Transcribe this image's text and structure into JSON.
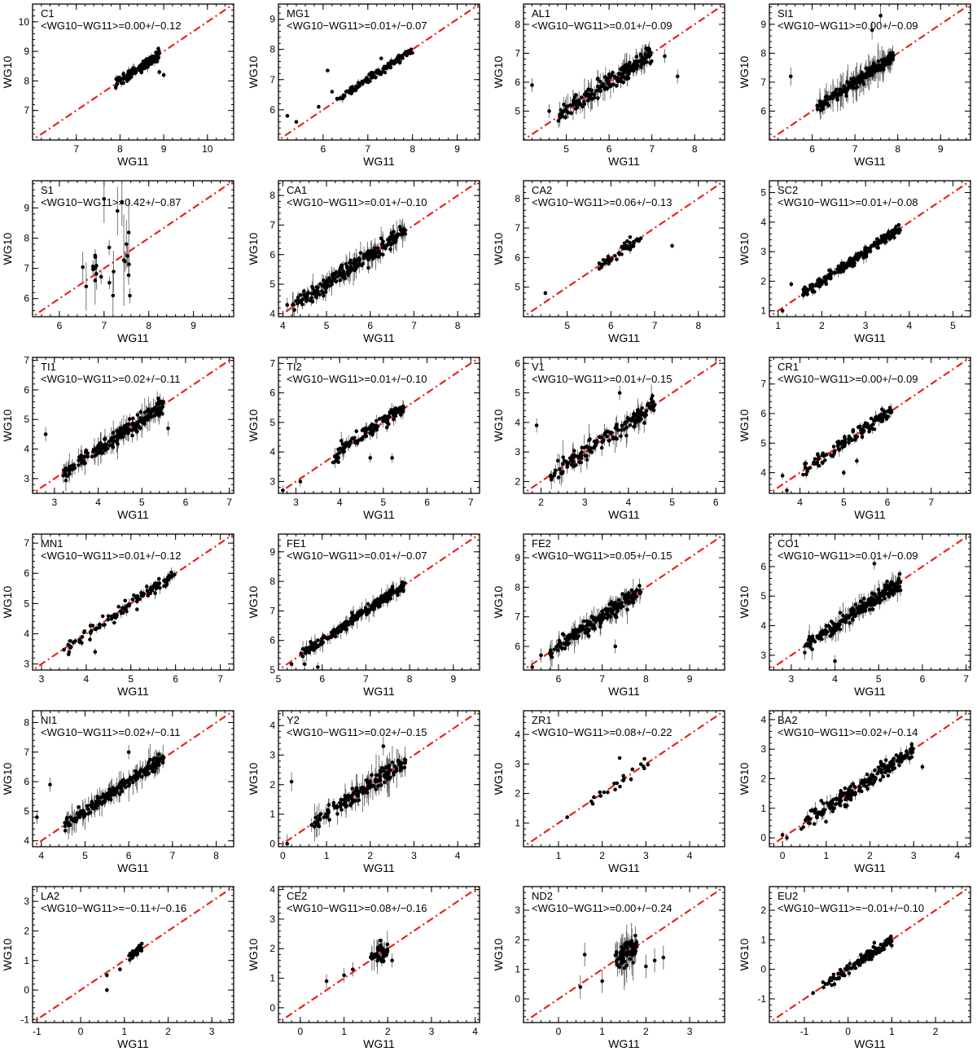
{
  "figure": {
    "xlabel": "WG11",
    "ylabel": "WG10"
  },
  "colors": {
    "identity_line": "#e8231a",
    "points": "#000000",
    "errorbars": "#555555",
    "frame": "#000000"
  },
  "chart_data": [
    {
      "type": "scatter",
      "element": "C1",
      "stat": "<WG10−WG11>=0.00+/−0.12",
      "xlabel": "WG11",
      "ylabel": "WG10",
      "xlim": [
        6.0,
        10.6
      ],
      "ylim": [
        6.0,
        10.6
      ],
      "xticks": [
        7,
        8,
        9,
        10
      ],
      "yticks": [
        7,
        8,
        9,
        10
      ],
      "cluster": {
        "n": 140,
        "xmin": 7.9,
        "xmax": 8.9,
        "scatter": 0.12,
        "yerr": 0.12
      },
      "extra_points": [
        [
          8.0,
          8.1
        ],
        [
          8.9,
          8.3
        ],
        [
          9.0,
          8.2
        ]
      ]
    },
    {
      "type": "scatter",
      "element": "MG1",
      "stat": "<WG10−WG11>=0.01+/−0.07",
      "xlabel": "WG11",
      "ylabel": "WG10",
      "xlim": [
        5.0,
        9.5
      ],
      "ylim": [
        5.0,
        9.5
      ],
      "xticks": [
        6,
        7,
        8,
        9
      ],
      "yticks": [
        6,
        7,
        8,
        9
      ],
      "cluster": {
        "n": 120,
        "xmin": 6.3,
        "xmax": 8.0,
        "scatter": 0.09,
        "yerr": 0.08
      },
      "extra_points": [
        [
          5.2,
          5.8
        ],
        [
          5.4,
          5.6
        ],
        [
          5.9,
          6.1
        ],
        [
          6.1,
          7.3
        ],
        [
          6.2,
          6.6
        ],
        [
          7.3,
          7.7
        ]
      ]
    },
    {
      "type": "scatter",
      "element": "AL1",
      "stat": "<WG10−WG11>=0.01+/−0.09",
      "xlabel": "WG11",
      "ylabel": "WG10",
      "xlim": [
        4.0,
        8.7
      ],
      "ylim": [
        4.0,
        8.7
      ],
      "xticks": [
        5,
        6,
        7,
        8
      ],
      "yticks": [
        5,
        6,
        7,
        8
      ],
      "cluster": {
        "n": 200,
        "xmin": 4.8,
        "xmax": 7.0,
        "scatter": 0.2,
        "yerr": 0.3
      },
      "extra_points": [
        [
          4.2,
          5.9
        ],
        [
          4.6,
          5.0
        ],
        [
          7.3,
          6.9
        ],
        [
          7.6,
          6.2
        ]
      ]
    },
    {
      "type": "scatter",
      "element": "SI1",
      "stat": "<WG10−WG11>=0.00+/−0.09",
      "xlabel": "WG11",
      "ylabel": "WG10",
      "xlim": [
        5.0,
        9.7
      ],
      "ylim": [
        5.0,
        9.7
      ],
      "xticks": [
        6,
        7,
        8,
        9
      ],
      "yticks": [
        6,
        7,
        8,
        9
      ],
      "cluster": {
        "n": 200,
        "xmin": 6.1,
        "xmax": 7.9,
        "scatter": 0.15,
        "yerr": 0.4
      },
      "extra_points": [
        [
          5.5,
          7.2
        ],
        [
          7.4,
          8.8
        ],
        [
          7.6,
          9.3
        ]
      ]
    },
    {
      "type": "scatter",
      "element": "S1",
      "stat": "<WG10−WG11>=0.42+/−0.87",
      "xlabel": "WG11",
      "ylabel": "WG10",
      "xlim": [
        5.4,
        9.9
      ],
      "ylim": [
        5.4,
        9.9
      ],
      "xticks": [
        6,
        7,
        8,
        9
      ],
      "yticks": [
        6,
        7,
        8,
        9
      ],
      "cluster": {
        "n": 20,
        "xmin": 6.5,
        "xmax": 7.6,
        "scatter": 0.8,
        "yerr": 1.0
      },
      "extra_points": [
        [
          7.0,
          9.3
        ],
        [
          7.3,
          8.9
        ],
        [
          7.4,
          9.2
        ],
        [
          7.5,
          7.8
        ],
        [
          6.8,
          6.6
        ],
        [
          6.6,
          6.4
        ],
        [
          7.2,
          6.1
        ]
      ]
    },
    {
      "type": "scatter",
      "element": "CA1",
      "stat": "<WG10−WG11>=0.01+/−0.10",
      "xlabel": "WG11",
      "ylabel": "WG10",
      "xlim": [
        3.9,
        8.5
      ],
      "ylim": [
        3.9,
        8.5
      ],
      "xticks": [
        4,
        5,
        6,
        7,
        8
      ],
      "yticks": [
        4,
        5,
        6,
        7,
        8
      ],
      "cluster": {
        "n": 220,
        "xmin": 4.2,
        "xmax": 6.8,
        "scatter": 0.18,
        "yerr": 0.3
      },
      "extra_points": [
        [
          4.1,
          4.3
        ],
        [
          5.0,
          4.9
        ],
        [
          6.8,
          6.7
        ]
      ]
    },
    {
      "type": "scatter",
      "element": "CA2",
      "stat": "<WG10−WG11>=0.06+/−0.13",
      "xlabel": "WG11",
      "ylabel": "WG10",
      "xlim": [
        4.0,
        8.6
      ],
      "ylim": [
        4.0,
        8.6
      ],
      "xticks": [
        5,
        6,
        7,
        8
      ],
      "yticks": [
        5,
        6,
        7,
        8
      ],
      "cluster": {
        "n": 45,
        "xmin": 5.7,
        "xmax": 6.7,
        "scatter": 0.13,
        "yerr": 0.1
      },
      "extra_points": [
        [
          4.5,
          4.8
        ],
        [
          7.4,
          6.4
        ],
        [
          6.0,
          5.9
        ]
      ]
    },
    {
      "type": "scatter",
      "element": "SC2",
      "stat": "<WG10−WG11>=0.01+/−0.08",
      "xlabel": "WG11",
      "ylabel": "WG10",
      "xlim": [
        0.8,
        5.4
      ],
      "ylim": [
        0.8,
        5.4
      ],
      "xticks": [
        1,
        2,
        3,
        4,
        5
      ],
      "yticks": [
        1,
        2,
        3,
        4,
        5
      ],
      "cluster": {
        "n": 220,
        "xmin": 1.5,
        "xmax": 3.8,
        "scatter": 0.12,
        "yerr": 0.12
      },
      "extra_points": [
        [
          1.1,
          1.0
        ],
        [
          1.3,
          1.9
        ]
      ]
    },
    {
      "type": "scatter",
      "element": "TI1",
      "stat": "<WG10−WG11>=0.02+/−0.11",
      "xlabel": "WG11",
      "ylabel": "WG10",
      "xlim": [
        2.5,
        7.1
      ],
      "ylim": [
        2.5,
        7.1
      ],
      "xticks": [
        3,
        4,
        5,
        6,
        7
      ],
      "yticks": [
        3,
        4,
        5,
        6,
        7
      ],
      "cluster": {
        "n": 220,
        "xmin": 3.2,
        "xmax": 5.5,
        "scatter": 0.18,
        "yerr": 0.3
      },
      "extra_points": [
        [
          2.8,
          4.5
        ],
        [
          5.6,
          4.7
        ],
        [
          3.2,
          3.1
        ]
      ]
    },
    {
      "type": "scatter",
      "element": "TI2",
      "stat": "<WG10−WG11>=0.01+/−0.10",
      "xlabel": "WG11",
      "ylabel": "WG10",
      "xlim": [
        2.6,
        7.2
      ],
      "ylim": [
        2.6,
        7.2
      ],
      "xticks": [
        3,
        4,
        5,
        6,
        7
      ],
      "yticks": [
        3,
        4,
        5,
        6,
        7
      ],
      "cluster": {
        "n": 120,
        "xmin": 3.8,
        "xmax": 5.5,
        "scatter": 0.18,
        "yerr": 0.2
      },
      "extra_points": [
        [
          2.7,
          2.7
        ],
        [
          3.1,
          3.0
        ],
        [
          5.2,
          3.8
        ],
        [
          4.7,
          3.8
        ]
      ]
    },
    {
      "type": "scatter",
      "element": "V1",
      "stat": "<WG10−WG11>=0.01+/−0.15",
      "xlabel": "WG11",
      "ylabel": "WG10",
      "xlim": [
        1.6,
        6.2
      ],
      "ylim": [
        1.6,
        6.2
      ],
      "xticks": [
        2,
        3,
        4,
        5,
        6
      ],
      "yticks": [
        2,
        3,
        4,
        5,
        6
      ],
      "cluster": {
        "n": 160,
        "xmin": 2.2,
        "xmax": 4.6,
        "scatter": 0.22,
        "yerr": 0.3
      },
      "extra_points": [
        [
          1.9,
          3.9
        ],
        [
          3.8,
          5.0
        ],
        [
          2.3,
          2.2
        ],
        [
          2.6,
          2.5
        ]
      ]
    },
    {
      "type": "scatter",
      "element": "CR1",
      "stat": "<WG10−WG11>=0.00+/−0.09",
      "xlabel": "WG11",
      "ylabel": "WG10",
      "xlim": [
        3.3,
        7.9
      ],
      "ylim": [
        3.3,
        7.9
      ],
      "xticks": [
        4,
        5,
        6,
        7
      ],
      "yticks": [
        4,
        5,
        6,
        7
      ],
      "cluster": {
        "n": 120,
        "xmin": 4.0,
        "xmax": 6.1,
        "scatter": 0.16,
        "yerr": 0.15
      },
      "extra_points": [
        [
          3.6,
          3.9
        ],
        [
          3.7,
          3.4
        ],
        [
          5.0,
          4.0
        ],
        [
          5.3,
          4.4
        ]
      ]
    },
    {
      "type": "scatter",
      "element": "MN1",
      "stat": "<WG10−WG11>=0.01+/−0.12",
      "xlabel": "WG11",
      "ylabel": "WG10",
      "xlim": [
        2.8,
        7.3
      ],
      "ylim": [
        2.8,
        7.3
      ],
      "xticks": [
        3,
        4,
        5,
        6,
        7
      ],
      "yticks": [
        3,
        4,
        5,
        6,
        7
      ],
      "cluster": {
        "n": 110,
        "xmin": 3.5,
        "xmax": 6.0,
        "scatter": 0.15,
        "yerr": 0.15
      },
      "extra_points": [
        [
          4.2,
          3.4
        ],
        [
          3.9,
          3.7
        ]
      ]
    },
    {
      "type": "scatter",
      "element": "FE1",
      "stat": "<WG10−WG11>=0.01+/−0.07",
      "xlabel": "WG11",
      "ylabel": "WG10",
      "xlim": [
        5.0,
        9.6
      ],
      "ylim": [
        5.0,
        9.6
      ],
      "xticks": [
        5,
        6,
        7,
        8,
        9
      ],
      "yticks": [
        5,
        6,
        7,
        8,
        9
      ],
      "cluster": {
        "n": 220,
        "xmin": 5.5,
        "xmax": 7.9,
        "scatter": 0.12,
        "yerr": 0.2
      },
      "extra_points": [
        [
          5.3,
          5.2
        ],
        [
          5.6,
          5.2
        ],
        [
          5.9,
          5.1
        ]
      ]
    },
    {
      "type": "scatter",
      "element": "FE2",
      "stat": "<WG10−WG11>=0.05+/−0.15",
      "xlabel": "WG11",
      "ylabel": "WG10",
      "xlim": [
        5.2,
        9.8
      ],
      "ylim": [
        5.2,
        9.8
      ],
      "xticks": [
        6,
        7,
        8,
        9
      ],
      "yticks": [
        6,
        7,
        8,
        9
      ],
      "cluster": {
        "n": 200,
        "xmin": 5.8,
        "xmax": 7.9,
        "scatter": 0.18,
        "yerr": 0.3
      },
      "extra_points": [
        [
          5.4,
          5.3
        ],
        [
          5.6,
          5.7
        ],
        [
          7.3,
          6.0
        ]
      ]
    },
    {
      "type": "scatter",
      "element": "CO1",
      "stat": "<WG10−WG11>=0.01+/−0.09",
      "xlabel": "WG11",
      "ylabel": "WG10",
      "xlim": [
        2.5,
        7.1
      ],
      "ylim": [
        2.5,
        7.1
      ],
      "xticks": [
        3,
        4,
        5,
        6,
        7
      ],
      "yticks": [
        3,
        4,
        5,
        6
      ],
      "cluster": {
        "n": 220,
        "xmin": 3.3,
        "xmax": 5.5,
        "scatter": 0.18,
        "yerr": 0.25
      },
      "extra_points": [
        [
          4.0,
          2.8
        ],
        [
          4.9,
          6.1
        ],
        [
          5.5,
          5.2
        ]
      ]
    },
    {
      "type": "scatter",
      "element": "NI1",
      "stat": "<WG10−WG11>=0.02+/−0.11",
      "xlabel": "WG11",
      "ylabel": "WG10",
      "xlim": [
        3.8,
        8.4
      ],
      "ylim": [
        3.8,
        8.4
      ],
      "xticks": [
        4,
        5,
        6,
        7,
        8
      ],
      "yticks": [
        4,
        5,
        6,
        7,
        8
      ],
      "cluster": {
        "n": 220,
        "xmin": 4.5,
        "xmax": 6.8,
        "scatter": 0.14,
        "yerr": 0.3
      },
      "extra_points": [
        [
          3.9,
          4.8
        ],
        [
          4.2,
          5.9
        ],
        [
          6.0,
          7.0
        ]
      ]
    },
    {
      "type": "scatter",
      "element": "Y2",
      "stat": "<WG10−WG11>=0.02+/−0.15",
      "xlabel": "WG11",
      "ylabel": "WG10",
      "xlim": [
        -0.1,
        4.5
      ],
      "ylim": [
        -0.1,
        4.5
      ],
      "xticks": [
        0,
        1,
        2,
        3,
        4
      ],
      "yticks": [
        0,
        1,
        2,
        3,
        4
      ],
      "cluster": {
        "n": 150,
        "xmin": 0.6,
        "xmax": 2.8,
        "scatter": 0.2,
        "yerr": 0.4
      },
      "extra_points": [
        [
          0.2,
          2.1
        ],
        [
          0.1,
          0.0
        ],
        [
          2.3,
          3.3
        ]
      ]
    },
    {
      "type": "scatter",
      "element": "ZR1",
      "stat": "<WG10−WG11>=0.08+/−0.22",
      "xlabel": "WG11",
      "ylabel": "WG10",
      "xlim": [
        0.2,
        4.8
      ],
      "ylim": [
        0.2,
        4.8
      ],
      "xticks": [
        1,
        2,
        3,
        4
      ],
      "yticks": [
        1,
        2,
        3,
        4
      ],
      "cluster": {
        "n": 20,
        "xmin": 1.5,
        "xmax": 3.1,
        "scatter": 0.15,
        "yerr": 0.05
      },
      "extra_points": [
        [
          1.2,
          1.2
        ],
        [
          2.4,
          3.2
        ],
        [
          2.5,
          2.5
        ]
      ]
    },
    {
      "type": "scatter",
      "element": "BA2",
      "stat": "<WG10−WG11>=0.02+/−0.14",
      "xlabel": "WG11",
      "ylabel": "WG10",
      "xlim": [
        -0.3,
        4.3
      ],
      "ylim": [
        -0.3,
        4.3
      ],
      "xticks": [
        0,
        1,
        2,
        3,
        4
      ],
      "yticks": [
        0,
        1,
        2,
        3,
        4
      ],
      "cluster": {
        "n": 200,
        "xmin": 0.4,
        "xmax": 3.0,
        "scatter": 0.2,
        "yerr": 0.15
      },
      "extra_points": [
        [
          0.1,
          0.0
        ],
        [
          0.0,
          0.1
        ],
        [
          3.2,
          2.4
        ],
        [
          2.9,
          2.7
        ]
      ]
    },
    {
      "type": "scatter",
      "element": "LA2",
      "stat": "<WG10−WG11>=−0.11+/−0.16",
      "xlabel": "WG11",
      "ylabel": "WG10",
      "xlim": [
        -1.1,
        3.5
      ],
      "ylim": [
        -1.1,
        3.5
      ],
      "xticks": [
        -1,
        0,
        1,
        2,
        3
      ],
      "yticks": [
        -1,
        0,
        1,
        2,
        3
      ],
      "cluster": {
        "n": 40,
        "xmin": 1.1,
        "xmax": 1.4,
        "scatter": 0.12,
        "yerr": 0.1
      },
      "extra_points": [
        [
          0.6,
          0.0
        ],
        [
          0.6,
          0.5
        ],
        [
          0.9,
          0.7
        ]
      ]
    },
    {
      "type": "scatter",
      "element": "CE2",
      "stat": "<WG10−WG11>=0.08+/−0.16",
      "xlabel": "WG11",
      "ylabel": "WG10",
      "xlim": [
        -0.5,
        4.1
      ],
      "ylim": [
        -0.5,
        4.1
      ],
      "xticks": [
        0,
        1,
        2,
        3,
        4
      ],
      "yticks": [
        0,
        1,
        2,
        3,
        4
      ],
      "cluster": {
        "n": 45,
        "xmin": 1.6,
        "xmax": 2.0,
        "scatter": 0.2,
        "yerr": 0.3
      },
      "extra_points": [
        [
          0.6,
          0.9
        ],
        [
          1.0,
          1.1
        ],
        [
          1.2,
          1.3
        ],
        [
          2.1,
          1.6
        ]
      ]
    },
    {
      "type": "scatter",
      "element": "ND2",
      "stat": "<WG10−WG11>=0.00+/−0.24",
      "xlabel": "WG11",
      "ylabel": "WG10",
      "xlim": [
        -0.8,
        3.8
      ],
      "ylim": [
        -0.8,
        3.8
      ],
      "xticks": [
        0,
        1,
        2,
        3
      ],
      "yticks": [
        0,
        1,
        2,
        3
      ],
      "cluster": {
        "n": 80,
        "xmin": 1.3,
        "xmax": 1.8,
        "scatter": 0.3,
        "yerr": 0.5
      },
      "extra_points": [
        [
          0.6,
          1.5
        ],
        [
          2.2,
          1.3
        ],
        [
          2.4,
          1.4
        ],
        [
          2.0,
          1.1
        ],
        [
          1.0,
          0.6
        ],
        [
          0.5,
          0.4
        ]
      ]
    },
    {
      "type": "scatter",
      "element": "EU2",
      "stat": "<WG10−WG11>=−0.01+/−0.10",
      "xlabel": "WG11",
      "ylabel": "WG10",
      "xlim": [
        -1.8,
        2.8
      ],
      "ylim": [
        -1.8,
        2.8
      ],
      "xticks": [
        -1,
        0,
        1,
        2
      ],
      "yticks": [
        -1,
        0,
        1,
        2
      ],
      "cluster": {
        "n": 120,
        "xmin": -0.6,
        "xmax": 1.0,
        "scatter": 0.12,
        "yerr": 0.1
      },
      "extra_points": [
        [
          -0.8,
          -0.8
        ],
        [
          -0.4,
          -0.3
        ],
        [
          0.6,
          0.9
        ]
      ]
    }
  ]
}
